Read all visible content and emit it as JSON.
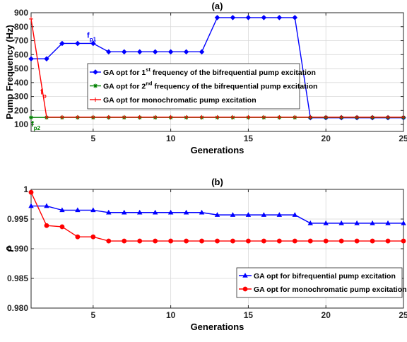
{
  "chart_data": [
    {
      "type": "line",
      "panel_label": "(a)",
      "xlabel": "Generations",
      "ylabel": "Pump Frequency (Hz)",
      "xlim": [
        1,
        25
      ],
      "ylim": [
        50,
        900
      ],
      "xticks": [
        5,
        10,
        15,
        20,
        25
      ],
      "yticks": [
        100,
        200,
        300,
        400,
        500,
        600,
        700,
        800,
        900
      ],
      "grid": true,
      "legend_position": "center",
      "x": [
        1,
        2,
        3,
        4,
        5,
        6,
        7,
        8,
        9,
        10,
        11,
        12,
        13,
        14,
        15,
        16,
        17,
        18,
        19,
        20,
        21,
        22,
        23,
        24,
        25
      ],
      "series": [
        {
          "legend_parts": [
            "GA opt for 1",
            "st",
            " frequency of the bifrequential pump excitation"
          ],
          "color": "#0000ff",
          "marker": "diamond",
          "values": [
            570,
            570,
            680,
            680,
            680,
            620,
            620,
            620,
            620,
            620,
            620,
            620,
            865,
            865,
            865,
            865,
            865,
            865,
            148,
            148,
            148,
            148,
            148,
            148,
            148
          ]
        },
        {
          "legend_parts": [
            "GA opt for 2",
            "nd",
            " frequency of the bifrequential pump excitation"
          ],
          "color": "#008000",
          "marker": "star",
          "values": [
            150,
            150,
            150,
            150,
            150,
            150,
            150,
            150,
            150,
            150,
            150,
            150,
            150,
            150,
            150,
            150,
            150,
            150,
            150,
            150,
            150,
            150,
            150,
            150,
            150
          ]
        },
        {
          "legend_parts": [
            "GA opt for monochromatic pump excitation",
            "",
            ""
          ],
          "color": "#ff0000",
          "marker": "plus",
          "values": [
            855,
            152,
            152,
            152,
            152,
            152,
            152,
            152,
            152,
            152,
            152,
            152,
            152,
            152,
            152,
            152,
            152,
            152,
            152,
            152,
            152,
            152,
            152,
            152,
            152
          ]
        }
      ],
      "annotations": [
        {
          "base": "f",
          "sub": "p1",
          "color": "#0000ff",
          "x": 4.6,
          "y": 720
        },
        {
          "base": "f",
          "sub": "p",
          "color": "#ff0000",
          "x": 1.6,
          "y": 315
        },
        {
          "base": "f",
          "sub": "p2",
          "color": "#008000",
          "x": 1.0,
          "y": 85
        }
      ]
    },
    {
      "type": "line",
      "panel_label": "(b)",
      "xlabel": "Generations",
      "ylabel": "ρ",
      "xlim": [
        1,
        25
      ],
      "ylim": [
        0.98,
        1.0
      ],
      "xticks": [
        5,
        10,
        15,
        20,
        25
      ],
      "yticks": [
        0.98,
        0.985,
        0.99,
        0.995,
        1.0
      ],
      "ytick_labels": [
        "0.980",
        "0.985",
        "0.990",
        "0.995",
        "1"
      ],
      "grid": true,
      "legend_position": "bottom-right",
      "x": [
        1,
        2,
        3,
        4,
        5,
        6,
        7,
        8,
        9,
        10,
        11,
        12,
        13,
        14,
        15,
        16,
        17,
        18,
        19,
        20,
        21,
        22,
        23,
        24,
        25
      ],
      "series": [
        {
          "name": "GA opt for bifrequential pump excitation",
          "color": "#0000ff",
          "marker": "triangle",
          "values": [
            0.9972,
            0.9972,
            0.9965,
            0.9965,
            0.9965,
            0.9961,
            0.9961,
            0.9961,
            0.9961,
            0.9961,
            0.9961,
            0.9961,
            0.9957,
            0.9957,
            0.9957,
            0.9957,
            0.9957,
            0.9957,
            0.9943,
            0.9943,
            0.9943,
            0.9943,
            0.9943,
            0.9943,
            0.9943
          ]
        },
        {
          "name": "GA opt for monochromatic pump excitation",
          "color": "#ff0000",
          "marker": "circle",
          "values": [
            0.9995,
            0.9939,
            0.9937,
            0.992,
            0.992,
            0.9913,
            0.9913,
            0.9913,
            0.9913,
            0.9913,
            0.9913,
            0.9913,
            0.9913,
            0.9913,
            0.9913,
            0.9913,
            0.9913,
            0.9913,
            0.9913,
            0.9913,
            0.9913,
            0.9913,
            0.9913,
            0.9913,
            0.9913
          ]
        }
      ]
    }
  ]
}
